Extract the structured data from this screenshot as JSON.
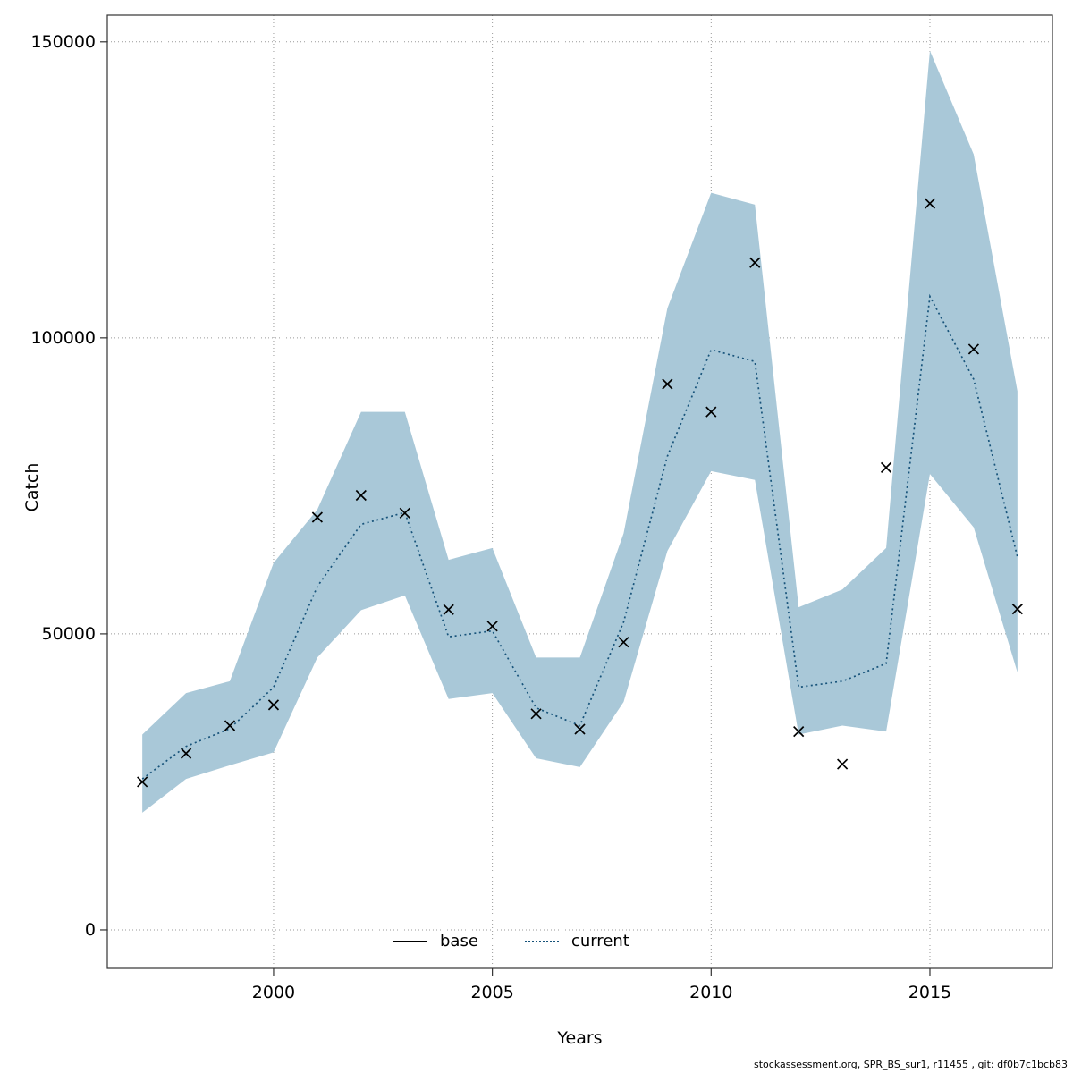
{
  "figure": {
    "background": "#ffffff",
    "footer": "stockassessment.org, SPR_BS_sur1, r11455 , git: df0b7c1bcb83"
  },
  "chart_data": {
    "type": "line",
    "title": "",
    "xlabel": "Years",
    "ylabel": "Catch",
    "xlim": [
      1996.2,
      2017.8
    ],
    "ylim": [
      -6500,
      154500
    ],
    "x_ticks": [
      2000,
      2005,
      2010,
      2015
    ],
    "y_ticks": [
      0,
      50000,
      100000,
      150000
    ],
    "grid": true,
    "grid_color": "#999999",
    "axis_color": "#333333",
    "legend_position": "bottom-center-inside",
    "years": [
      1997,
      1998,
      1999,
      2000,
      2001,
      2002,
      2003,
      2004,
      2005,
      2006,
      2007,
      2008,
      2009,
      2010,
      2011,
      2012,
      2013,
      2014,
      2015,
      2016,
      2017
    ],
    "series": [
      {
        "name": "base",
        "style": "solid",
        "color": "#000000",
        "values": []
      },
      {
        "name": "current",
        "style": "dotted",
        "color": "#17537a",
        "values": [
          25500,
          31000,
          34000,
          41000,
          58000,
          68500,
          70500,
          49500,
          50500,
          37500,
          34500,
          52000,
          80000,
          98000,
          96000,
          41000,
          42000,
          45000,
          107000,
          93000,
          63000
        ]
      }
    ],
    "observations": {
      "marker": "x",
      "color": "#000000",
      "values": [
        25000,
        29800,
        34500,
        38000,
        69700,
        73400,
        70400,
        54100,
        51300,
        36500,
        33900,
        48600,
        92200,
        87500,
        112700,
        33500,
        28000,
        78100,
        122700,
        98100,
        54200
      ]
    },
    "confidence_band": {
      "color": "#a9c8d8",
      "lower": [
        19800,
        25500,
        27800,
        30000,
        46000,
        54000,
        56500,
        39000,
        40000,
        29000,
        27500,
        38500,
        64000,
        77500,
        76000,
        33000,
        34500,
        33500,
        77000,
        68000,
        43500
      ],
      "upper": [
        33000,
        40000,
        42000,
        62000,
        71000,
        87500,
        87500,
        62500,
        64500,
        46000,
        46000,
        67000,
        105000,
        124500,
        122500,
        54500,
        57500,
        64500,
        148500,
        131000,
        91000
      ]
    }
  }
}
